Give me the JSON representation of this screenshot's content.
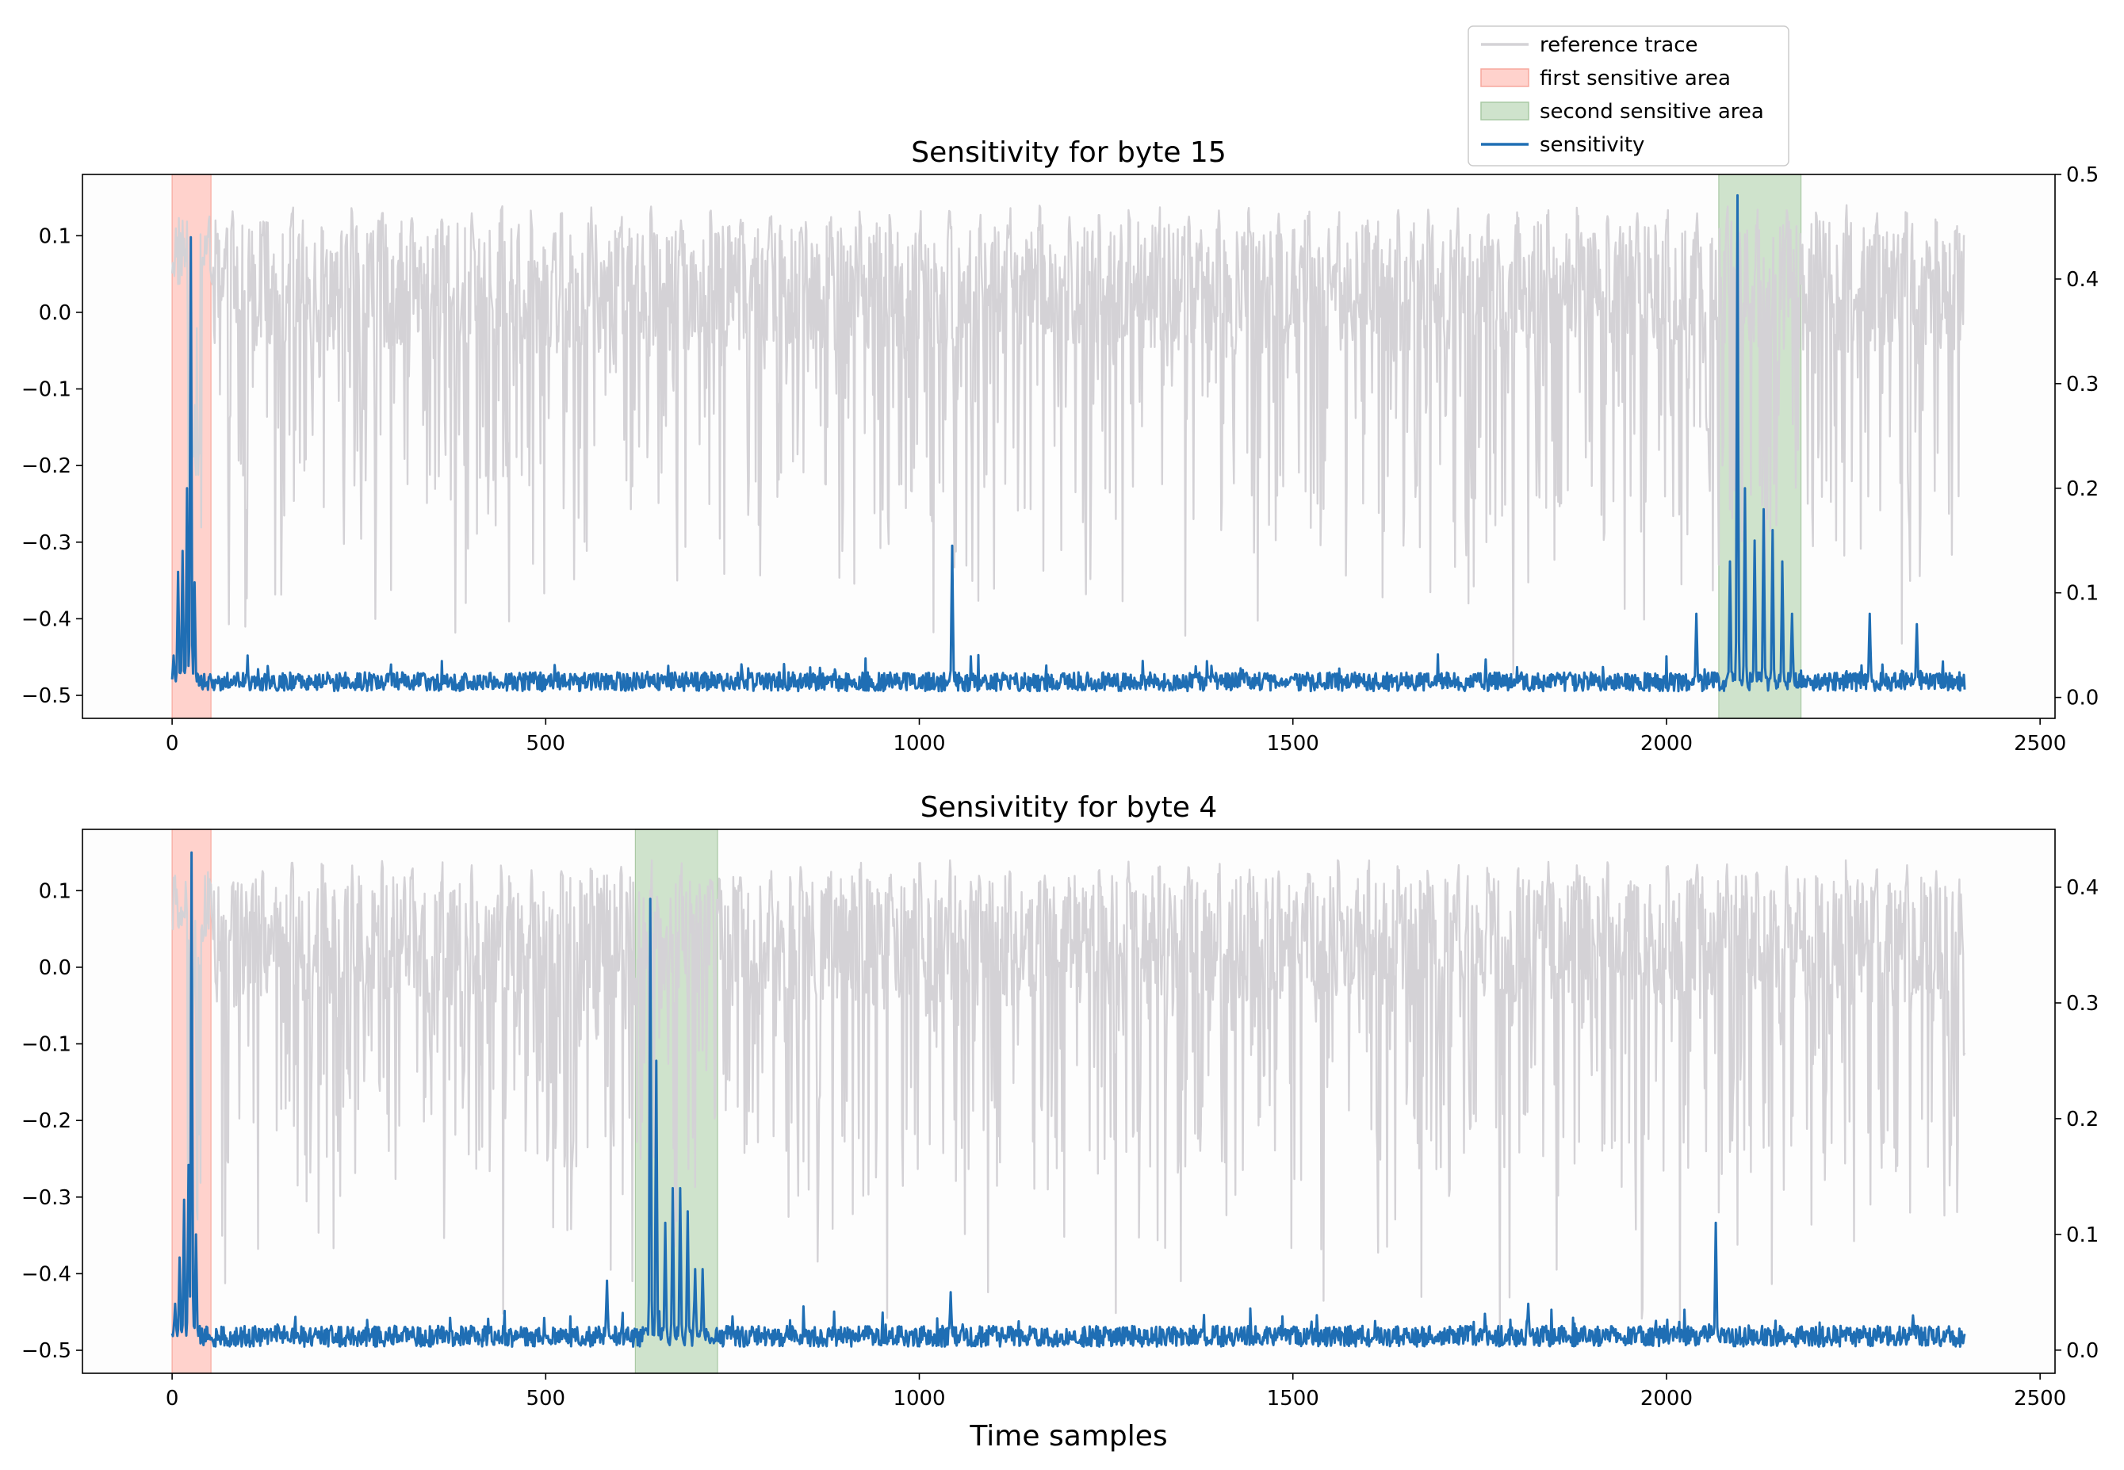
{
  "figure": {
    "xlabel": "Time samples"
  },
  "legend": {
    "placement": "top-right",
    "items": [
      {
        "label": "reference trace",
        "kind": "line",
        "color": "#d4d2d6"
      },
      {
        "label": "first sensitive area",
        "kind": "patch",
        "color": "#ffd2cc",
        "edge": "#f7a89d"
      },
      {
        "label": "second sensitive area",
        "kind": "patch",
        "color": "#cfe3cc",
        "edge": "#a9c9a4"
      },
      {
        "label": "sensitivity",
        "kind": "line",
        "color": "#1f6eb4"
      }
    ]
  },
  "chart_data": [
    {
      "type": "line",
      "title": "Sensitivity for byte 15",
      "xlim": [
        -120,
        2520
      ],
      "xticks": [
        0,
        500,
        1000,
        1500,
        2000,
        2500
      ],
      "left_axis": {
        "ylim": [
          -0.53,
          0.18
        ],
        "ticks": [
          0.1,
          0.0,
          -0.1,
          -0.2,
          -0.3,
          -0.4,
          -0.5
        ]
      },
      "right_axis": {
        "ylim": [
          -0.02,
          0.5
        ],
        "ticks": [
          0.5,
          0.4,
          0.3,
          0.2,
          0.1,
          0.0
        ]
      },
      "grid": false,
      "regions": [
        {
          "name": "first sensitive area",
          "x0": 0,
          "x1": 52
        },
        {
          "name": "second sensitive area",
          "x0": 2070,
          "x1": 2180
        }
      ],
      "series": [
        {
          "name": "reference trace",
          "axis": "left",
          "length": 2400,
          "range": [
            -0.5,
            0.14
          ],
          "typical_band": [
            -0.05,
            0.12
          ]
        },
        {
          "name": "sensitivity",
          "axis": "right",
          "length": 2400,
          "baseline": 0.015,
          "peaks": [
            {
              "x": 2,
              "y": 0.04
            },
            {
              "x": 8,
              "y": 0.12
            },
            {
              "x": 14,
              "y": 0.14
            },
            {
              "x": 20,
              "y": 0.2
            },
            {
              "x": 25,
              "y": 0.44
            },
            {
              "x": 30,
              "y": 0.11
            },
            {
              "x": 1044,
              "y": 0.145
            },
            {
              "x": 2040,
              "y": 0.08
            },
            {
              "x": 2085,
              "y": 0.13
            },
            {
              "x": 2095,
              "y": 0.48
            },
            {
              "x": 2105,
              "y": 0.2
            },
            {
              "x": 2118,
              "y": 0.15
            },
            {
              "x": 2130,
              "y": 0.18
            },
            {
              "x": 2142,
              "y": 0.16
            },
            {
              "x": 2155,
              "y": 0.13
            },
            {
              "x": 2168,
              "y": 0.08
            },
            {
              "x": 2272,
              "y": 0.08
            },
            {
              "x": 2335,
              "y": 0.07
            }
          ]
        }
      ]
    },
    {
      "type": "line",
      "title": "Sensivitity for byte 4",
      "xlim": [
        -120,
        2520
      ],
      "xticks": [
        0,
        500,
        1000,
        1500,
        2000,
        2500
      ],
      "left_axis": {
        "ylim": [
          -0.53,
          0.18
        ],
        "ticks": [
          0.1,
          0.0,
          -0.1,
          -0.2,
          -0.3,
          -0.4,
          -0.5
        ]
      },
      "right_axis": {
        "ylim": [
          -0.02,
          0.45
        ],
        "ticks": [
          0.4,
          0.3,
          0.2,
          0.1,
          0.0
        ]
      },
      "grid": false,
      "regions": [
        {
          "name": "first sensitive area",
          "x0": 0,
          "x1": 52
        },
        {
          "name": "second sensitive area",
          "x0": 620,
          "x1": 730
        }
      ],
      "series": [
        {
          "name": "reference trace",
          "axis": "left",
          "length": 2400,
          "range": [
            -0.5,
            0.14
          ],
          "typical_band": [
            -0.05,
            0.12
          ]
        },
        {
          "name": "sensitivity",
          "axis": "right",
          "length": 2400,
          "baseline": 0.012,
          "peaks": [
            {
              "x": 4,
              "y": 0.04
            },
            {
              "x": 10,
              "y": 0.08
            },
            {
              "x": 16,
              "y": 0.13
            },
            {
              "x": 22,
              "y": 0.16
            },
            {
              "x": 26,
              "y": 0.43
            },
            {
              "x": 32,
              "y": 0.1
            },
            {
              "x": 582,
              "y": 0.06
            },
            {
              "x": 640,
              "y": 0.39
            },
            {
              "x": 648,
              "y": 0.25
            },
            {
              "x": 660,
              "y": 0.11
            },
            {
              "x": 670,
              "y": 0.14
            },
            {
              "x": 680,
              "y": 0.14
            },
            {
              "x": 690,
              "y": 0.12
            },
            {
              "x": 700,
              "y": 0.07
            },
            {
              "x": 710,
              "y": 0.07
            },
            {
              "x": 1042,
              "y": 0.05
            },
            {
              "x": 1815,
              "y": 0.04
            },
            {
              "x": 2066,
              "y": 0.11
            },
            {
              "x": 2330,
              "y": 0.03
            }
          ]
        }
      ]
    }
  ]
}
